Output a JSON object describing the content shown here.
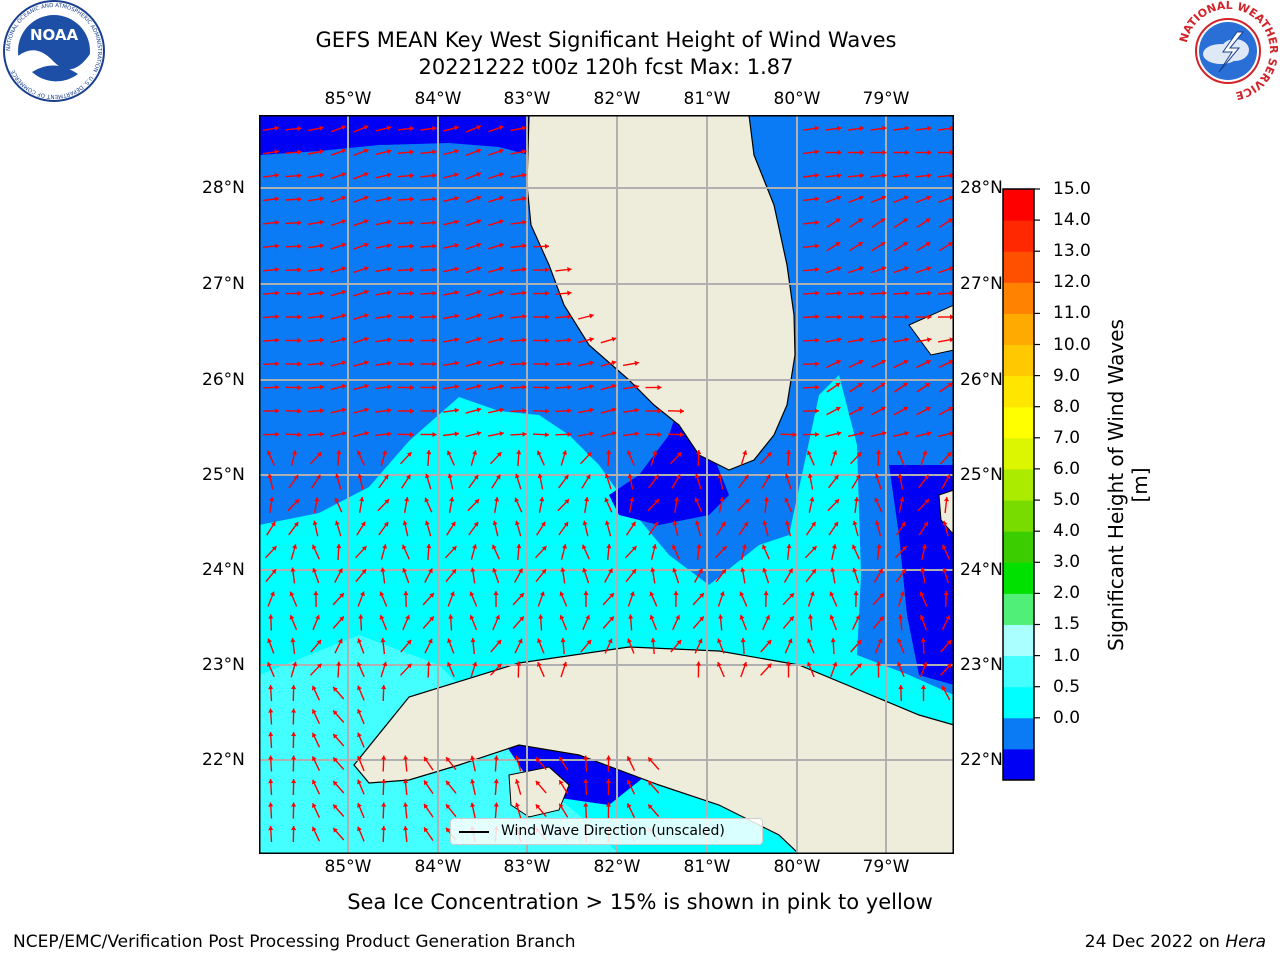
{
  "title_line1": "GEFS MEAN Key West Significant Height of Wind Waves",
  "title_line2": "20221222 t00z 120h fcst   Max: 1.87",
  "lon_labels": [
    "85°W",
    "84°W",
    "83°W",
    "82°W",
    "81°W",
    "80°W",
    "79°W"
  ],
  "lat_labels": [
    "28°N",
    "27°N",
    "26°N",
    "25°N",
    "24°N",
    "23°N",
    "22°N"
  ],
  "colorbar": {
    "label": "Significant Height of Wind Waves [m]",
    "ticks": [
      "15.0",
      "14.0",
      "13.0",
      "12.0",
      "11.0",
      "10.0",
      "9.0",
      "8.0",
      "7.0",
      "6.0",
      "5.0",
      "4.0",
      "3.0",
      "2.0",
      "1.5",
      "1.0",
      "0.5",
      "0.0"
    ],
    "colors": [
      "#0000f5",
      "#0a7af5",
      "#00ffff",
      "#44ffff",
      "#aaffff",
      "#50f078",
      "#00e100",
      "#3ccd00",
      "#78dc00",
      "#aaeb00",
      "#dcf500",
      "#ffff00",
      "#ffe600",
      "#ffc800",
      "#ffaa00",
      "#ff8200",
      "#ff5000",
      "#ff2800",
      "#ff0000"
    ]
  },
  "legend_label": "Wind Wave Direction (unscaled)",
  "note": "Sea Ice Concentration > 15% is shown in pink to yellow",
  "footer_left": "NCEP/EMC/Verification Post Processing Product Generation Branch",
  "footer_date": "24 Dec 2022 on ",
  "footer_host": "Hera",
  "noaa_logo": {
    "text": "NOAA",
    "ring_text": "NATIONAL OCEANIC AND ATMOSPHERIC ADMINISTRATION · U.S. DEPARTMENT OF COMMERCE"
  },
  "nws_logo": {
    "ring_text": "NATIONAL WEATHER SERVICE"
  },
  "map_colors": {
    "deep": "#0000f5",
    "medium": "#0a7af5",
    "cyan": "#00ffff",
    "light_cyan": "#44ffff",
    "land": "#eeeddc",
    "arrow": "#ff0000",
    "grid": "#b0b0b0"
  }
}
